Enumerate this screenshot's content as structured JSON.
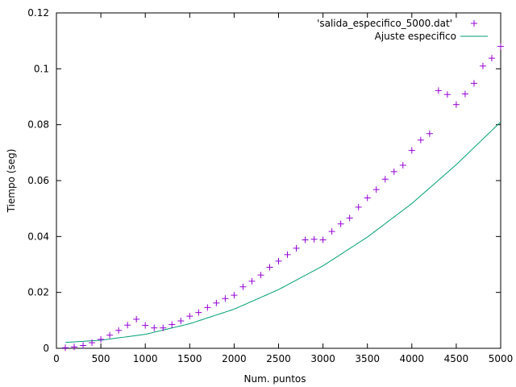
{
  "chart_data": {
    "type": "scatter",
    "xlabel": "Num. puntos",
    "ylabel": "Tiempo (seg)",
    "xlim": [
      0,
      5000
    ],
    "ylim": [
      0,
      0.12
    ],
    "x_ticks": [
      "0",
      "500",
      "1000",
      "1500",
      "2000",
      "2500",
      "3000",
      "3500",
      "4000",
      "4500",
      "5000"
    ],
    "y_ticks": [
      "0",
      "0.02",
      "0.04",
      "0.06",
      "0.08",
      "0.1",
      "0.12"
    ],
    "grid": false,
    "legend_position": "top-right",
    "series": [
      {
        "name": "'salida_especifico_5000.dat'",
        "marker": "+",
        "color": "#9400d3",
        "x": [
          100,
          200,
          300,
          400,
          500,
          600,
          700,
          800,
          900,
          1000,
          1100,
          1200,
          1300,
          1400,
          1500,
          1600,
          1700,
          1800,
          1900,
          2000,
          2100,
          2200,
          2300,
          2400,
          2500,
          2600,
          2700,
          2800,
          2900,
          3000,
          3100,
          3200,
          3300,
          3400,
          3500,
          3600,
          3700,
          3800,
          3900,
          4000,
          4100,
          4200,
          4300,
          4400,
          4500,
          4600,
          4700,
          4800,
          4900,
          5000
        ],
        "y": [
          0.0002,
          0.0005,
          0.001,
          0.002,
          0.0032,
          0.0047,
          0.0064,
          0.0083,
          0.0104,
          0.0082,
          0.0073,
          0.0073,
          0.0085,
          0.0098,
          0.0115,
          0.0128,
          0.0146,
          0.0162,
          0.0178,
          0.019,
          0.022,
          0.024,
          0.0262,
          0.029,
          0.0312,
          0.0335,
          0.0358,
          0.0388,
          0.039,
          0.0388,
          0.0418,
          0.0445,
          0.0466,
          0.0505,
          0.0538,
          0.0568,
          0.0605,
          0.0632,
          0.0655,
          0.0708,
          0.0745,
          0.0768,
          0.0922,
          0.0908,
          0.0872,
          0.091,
          0.0948,
          0.101,
          0.1038,
          0.108
        ]
      },
      {
        "name": "Ajuste especifico",
        "type": "line",
        "color": "#009e73",
        "x": [
          100,
          500,
          1000,
          1500,
          2000,
          2500,
          3000,
          3500,
          4000,
          4500,
          5000
        ],
        "y": [
          0.0021,
          0.0029,
          0.005,
          0.0088,
          0.014,
          0.021,
          0.0295,
          0.0398,
          0.0518,
          0.0657,
          0.081
        ]
      }
    ]
  }
}
